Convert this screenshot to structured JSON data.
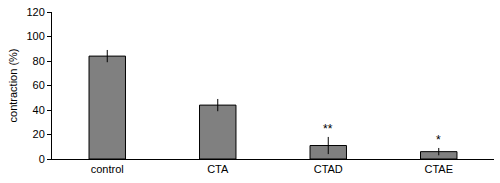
{
  "chart_data": {
    "type": "bar",
    "categories": [
      "control",
      "CTA",
      "CTAD",
      "CTAE"
    ],
    "values": [
      84,
      44,
      11,
      6
    ],
    "errors": [
      5,
      5,
      7,
      3
    ],
    "color": "#808080",
    "y_label": "contraction (%)",
    "ylim": [
      0,
      120
    ],
    "yticks": [
      0,
      20,
      40,
      60,
      80,
      100,
      120
    ],
    "grid": false,
    "annotations": [
      {
        "text": "**",
        "category": "CTAD"
      },
      {
        "text": "*",
        "category": "CTAE"
      }
    ]
  }
}
